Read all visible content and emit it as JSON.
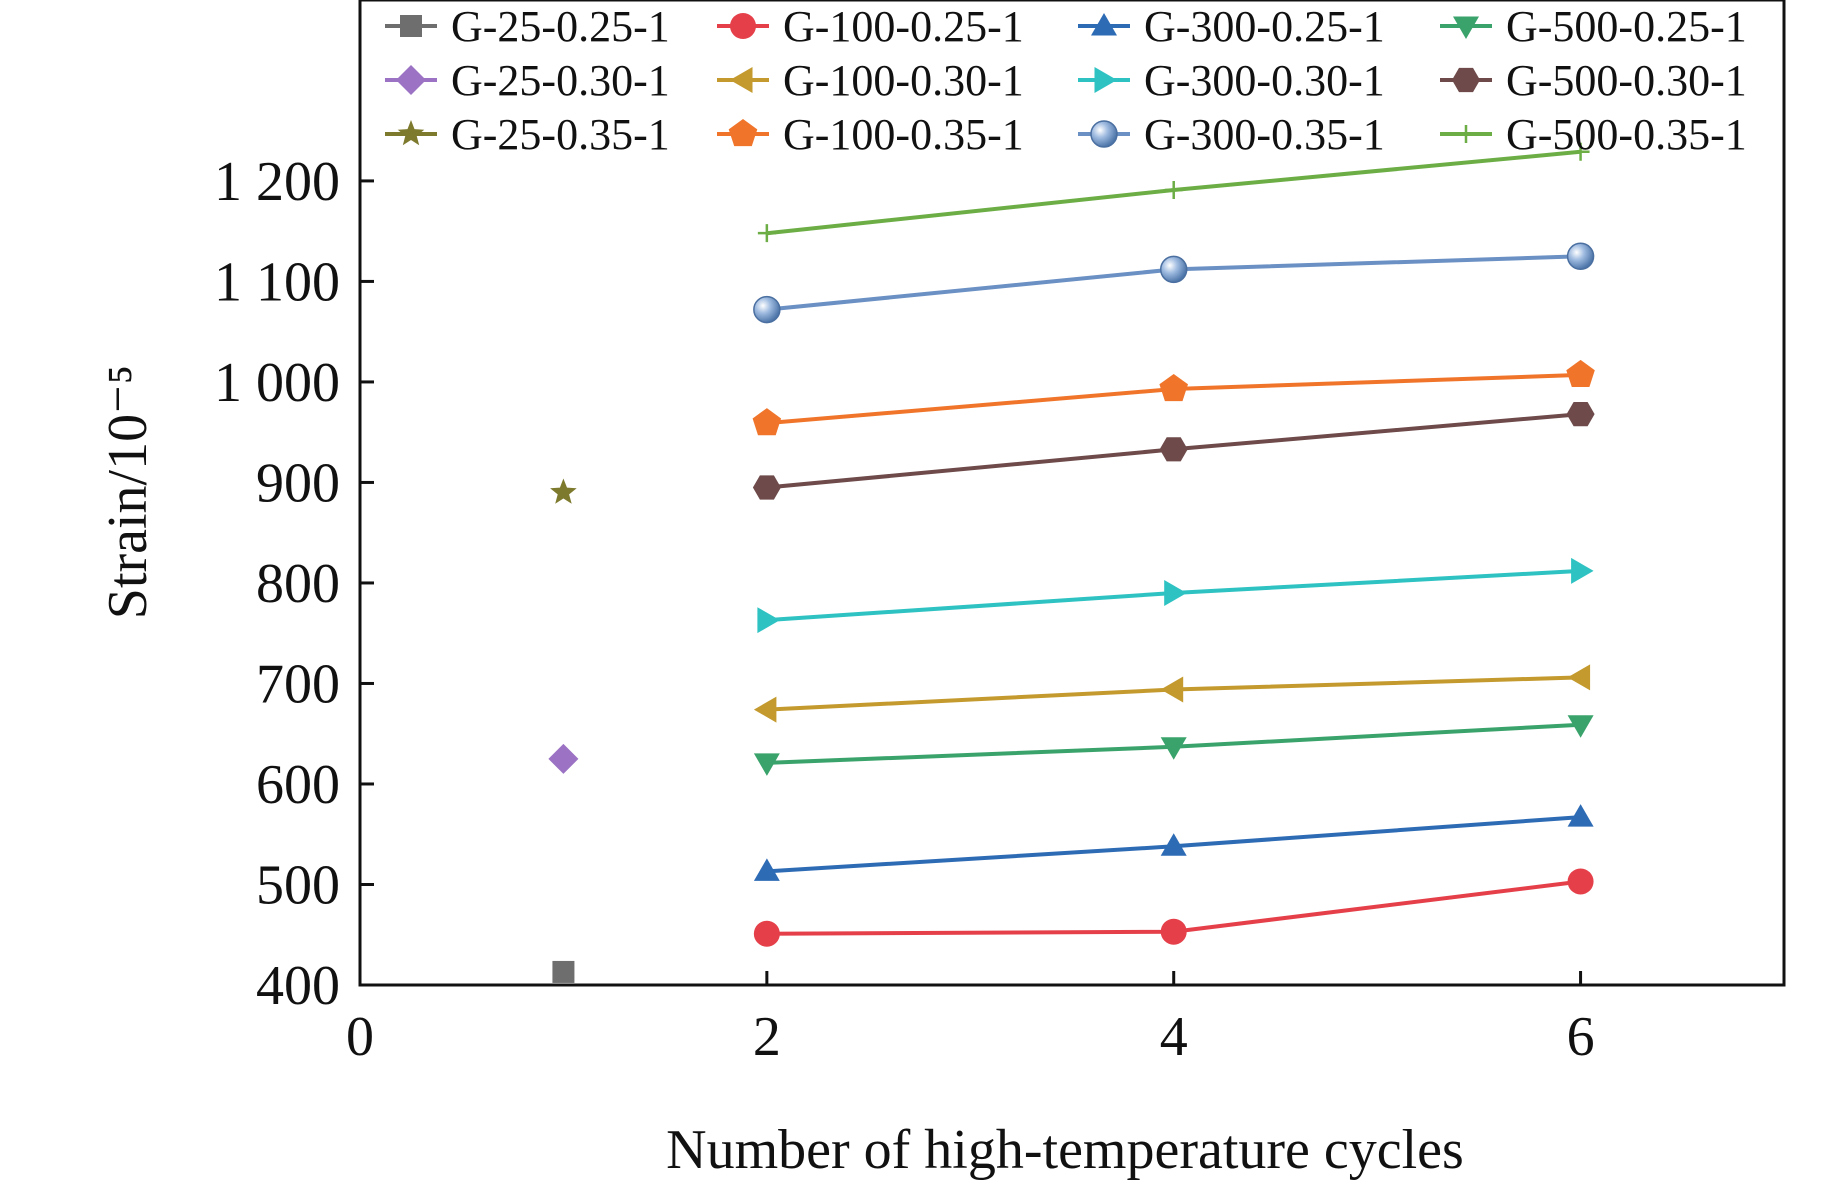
{
  "chart_data": {
    "type": "line",
    "title": "",
    "xlabel": "Number of high-temperature cycles",
    "ylabel": "Strain/10⁻⁵",
    "xlim": [
      0,
      7
    ],
    "ylim": [
      400,
      1380
    ],
    "x_ticks": [
      {
        "value": 0,
        "label": "0"
      },
      {
        "value": 2,
        "label": "2"
      },
      {
        "value": 4,
        "label": "4"
      },
      {
        "value": 6,
        "label": "6"
      }
    ],
    "y_ticks": [
      {
        "value": 400,
        "label": "400"
      },
      {
        "value": 500,
        "label": "500"
      },
      {
        "value": 600,
        "label": "600"
      },
      {
        "value": 700,
        "label": "700"
      },
      {
        "value": 800,
        "label": "800"
      },
      {
        "value": 900,
        "label": "900"
      },
      {
        "value": 1000,
        "label": "1 000"
      },
      {
        "value": 1100,
        "label": "1 100"
      },
      {
        "value": 1200,
        "label": "1 200"
      }
    ],
    "grid": false,
    "legend_position": "top",
    "series": [
      {
        "name": "G-25-0.25-1",
        "color": "#6e6e6e",
        "marker": "square",
        "points": [
          [
            1,
            413
          ]
        ]
      },
      {
        "name": "G-100-0.25-1",
        "color": "#e5404a",
        "marker": "circle",
        "points": [
          [
            2,
            451
          ],
          [
            4,
            453
          ],
          [
            6,
            503
          ]
        ]
      },
      {
        "name": "G-300-0.25-1",
        "color": "#2e6bb5",
        "marker": "triangle-up",
        "points": [
          [
            2,
            513
          ],
          [
            4,
            538
          ],
          [
            6,
            567
          ]
        ]
      },
      {
        "name": "G-500-0.25-1",
        "color": "#3aa36b",
        "marker": "triangle-down",
        "points": [
          [
            2,
            621
          ],
          [
            4,
            637
          ],
          [
            6,
            659
          ]
        ]
      },
      {
        "name": "G-25-0.30-1",
        "color": "#9b72c4",
        "marker": "diamond",
        "points": [
          [
            1,
            625
          ]
        ]
      },
      {
        "name": "G-100-0.30-1",
        "color": "#c49a2e",
        "marker": "triangle-left",
        "points": [
          [
            2,
            674
          ],
          [
            4,
            694
          ],
          [
            6,
            706
          ]
        ]
      },
      {
        "name": "G-300-0.30-1",
        "color": "#2ec2c2",
        "marker": "triangle-right",
        "points": [
          [
            2,
            763
          ],
          [
            4,
            790
          ],
          [
            6,
            812
          ]
        ]
      },
      {
        "name": "G-500-0.30-1",
        "color": "#6e4a4a",
        "marker": "hexagon",
        "points": [
          [
            2,
            895
          ],
          [
            4,
            933
          ],
          [
            6,
            968
          ]
        ]
      },
      {
        "name": "G-25-0.35-1",
        "color": "#7d7a2e",
        "marker": "star",
        "points": [
          [
            1,
            890
          ]
        ]
      },
      {
        "name": "G-100-0.35-1",
        "color": "#f0752a",
        "marker": "pentagon",
        "points": [
          [
            2,
            959
          ],
          [
            4,
            993
          ],
          [
            6,
            1007
          ]
        ]
      },
      {
        "name": "G-300-0.35-1",
        "color": "#6a90c4",
        "marker": "sphere",
        "points": [
          [
            2,
            1072
          ],
          [
            4,
            1112
          ],
          [
            6,
            1125
          ]
        ]
      },
      {
        "name": "G-500-0.35-1",
        "color": "#6cae45",
        "marker": "plus",
        "points": [
          [
            2,
            1148
          ],
          [
            4,
            1191
          ],
          [
            6,
            1229
          ]
        ]
      }
    ]
  }
}
